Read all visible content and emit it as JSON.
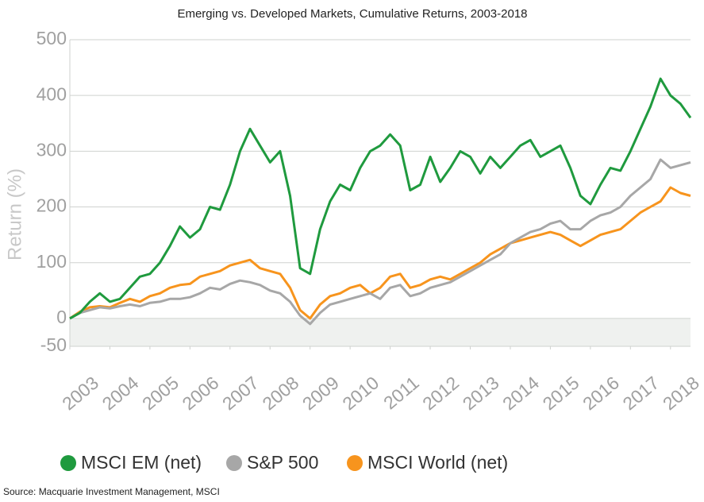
{
  "chart_data": {
    "type": "line",
    "title": "Emerging vs. Developed Markets, Cumulative Returns, 2003-2018",
    "y_label": "Return (%)",
    "source": "Source: Macquarie Investment Management, MSCI",
    "x": [
      2003,
      2003.25,
      2003.5,
      2003.75,
      2004,
      2004.25,
      2004.5,
      2004.75,
      2005,
      2005.25,
      2005.5,
      2005.75,
      2006,
      2006.25,
      2006.5,
      2006.75,
      2007,
      2007.25,
      2007.5,
      2007.75,
      2008,
      2008.25,
      2008.5,
      2008.75,
      2009,
      2009.25,
      2009.5,
      2009.75,
      2010,
      2010.25,
      2010.5,
      2010.75,
      2011,
      2011.25,
      2011.5,
      2011.75,
      2012,
      2012.25,
      2012.5,
      2012.75,
      2013,
      2013.25,
      2013.5,
      2013.75,
      2014,
      2014.25,
      2014.5,
      2014.75,
      2015,
      2015.25,
      2015.5,
      2015.75,
      2016,
      2016.25,
      2016.5,
      2016.75,
      2017,
      2017.25,
      2017.5,
      2017.75,
      2018,
      2018.25,
      2018.5
    ],
    "series": [
      {
        "name": "MSCI EM (net)",
        "color": "#1f9a3e",
        "values": [
          0,
          10,
          30,
          45,
          30,
          35,
          55,
          75,
          80,
          100,
          130,
          165,
          145,
          160,
          200,
          195,
          240,
          300,
          340,
          310,
          280,
          300,
          220,
          90,
          80,
          160,
          210,
          240,
          230,
          270,
          300,
          310,
          330,
          310,
          230,
          240,
          290,
          245,
          270,
          300,
          290,
          260,
          290,
          270,
          290,
          310,
          320,
          290,
          300,
          310,
          270,
          220,
          205,
          240,
          270,
          265,
          300,
          340,
          380,
          430,
          400,
          385,
          360
        ]
      },
      {
        "name": "S&P 500",
        "color": "#a7a7a7",
        "values": [
          0,
          10,
          15,
          20,
          18,
          22,
          25,
          22,
          28,
          30,
          35,
          35,
          38,
          45,
          55,
          52,
          62,
          68,
          65,
          60,
          50,
          45,
          30,
          5,
          -10,
          10,
          25,
          30,
          35,
          40,
          45,
          35,
          55,
          60,
          40,
          45,
          55,
          60,
          65,
          75,
          85,
          95,
          105,
          115,
          135,
          145,
          155,
          160,
          170,
          175,
          160,
          160,
          175,
          185,
          190,
          200,
          220,
          235,
          250,
          285,
          270,
          275,
          280
        ]
      },
      {
        "name": "MSCI World (net)",
        "color": "#f7941d",
        "values": [
          0,
          12,
          20,
          22,
          20,
          28,
          35,
          30,
          40,
          45,
          55,
          60,
          62,
          75,
          80,
          85,
          95,
          100,
          105,
          90,
          85,
          80,
          55,
          15,
          0,
          25,
          40,
          45,
          55,
          60,
          45,
          55,
          75,
          80,
          55,
          60,
          70,
          75,
          70,
          80,
          90,
          100,
          115,
          125,
          135,
          140,
          145,
          150,
          155,
          150,
          140,
          130,
          140,
          150,
          155,
          160,
          175,
          190,
          200,
          210,
          235,
          225,
          220
        ]
      }
    ],
    "xlim": [
      2003,
      2018.5
    ],
    "xticks": [
      2003,
      2004,
      2005,
      2006,
      2007,
      2008,
      2009,
      2010,
      2011,
      2012,
      2013,
      2014,
      2015,
      2016,
      2017,
      2018
    ],
    "ylim": [
      -50,
      500
    ],
    "yticks": [
      -50,
      0,
      100,
      200,
      300,
      400,
      500
    ],
    "grid": true,
    "legend": "bottom"
  }
}
